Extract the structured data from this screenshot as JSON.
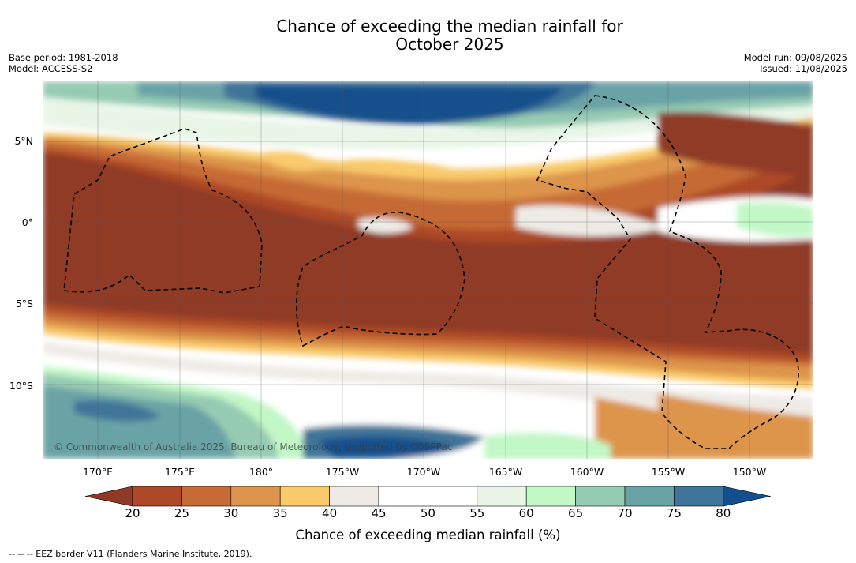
{
  "title_line1": "Chance of exceeding the median rainfall for",
  "title_line2": "October 2025",
  "base_period": "Base period: 1981-2018",
  "model": "Model: ACCESS-S2",
  "model_run": "Model run: 09/08/2025",
  "issued": "Issued: 11/08/2025",
  "lat_labels": [
    "5°N",
    "0°",
    "5°S",
    "10°S"
  ],
  "lon_labels": [
    "170°E",
    "175°E",
    "180°",
    "175°W",
    "170°W",
    "165°W",
    "160°W",
    "155°W",
    "150°W"
  ],
  "copyright": "© Commonwealth of Australia 2025, Bureau of Meteorology, supported by COSPPac",
  "colorbar": {
    "ticks": [
      "20",
      "25",
      "30",
      "35",
      "40",
      "45",
      "50",
      "55",
      "60",
      "65",
      "70",
      "75",
      "80"
    ],
    "colors": [
      "#8f3a26",
      "#ad4828",
      "#c66a36",
      "#dd944c",
      "#f9c96a",
      "#eeebe6",
      "#ffffff",
      "#ffffff",
      "#e8f5e7",
      "#c2f7c6",
      "#96cbb3",
      "#6aa3a6",
      "#3f7598",
      "#134f8c"
    ],
    "title": "Chance of exceeding median rainfall (%)"
  },
  "footnote": "--  --  -- EEZ border V11 (Flanders Marine Institute, 2019)."
}
